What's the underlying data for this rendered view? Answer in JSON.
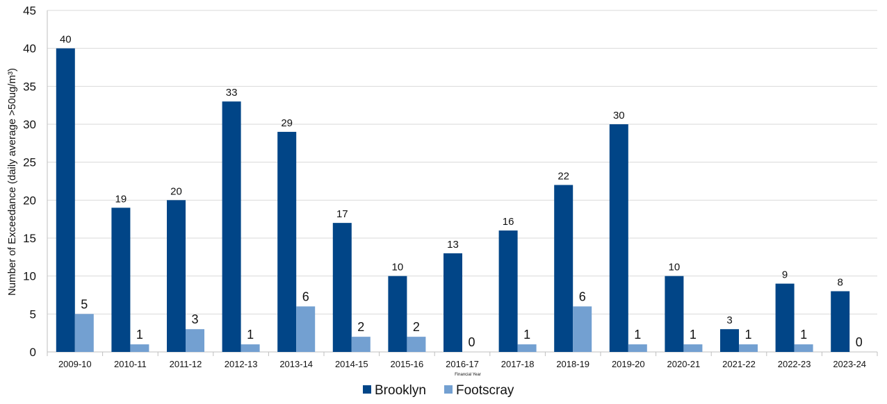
{
  "colors": {
    "brooklyn": "#014587",
    "footscray": "#73A0D1",
    "grid": "#d9d9d9",
    "axis": "#bfbfbf",
    "text": "#111111"
  },
  "chart_data": {
    "type": "bar",
    "title": "",
    "xlabel": "Financial Year",
    "ylabel": "Number of Exceedance (daily average >50ug/m³)",
    "ylim": [
      0,
      45
    ],
    "yticks": [
      0,
      5,
      10,
      15,
      20,
      25,
      30,
      35,
      40,
      45
    ],
    "grid": true,
    "legend_position": "bottom",
    "categories": [
      "2009-10",
      "2010-11",
      "2011-12",
      "2012-13",
      "2013-14",
      "2014-15",
      "2015-16",
      "2016-17",
      "2017-18",
      "2018-19",
      "2019-20",
      "2020-21",
      "2021-22",
      "2022-23",
      "2023-24"
    ],
    "series": [
      {
        "name": "Brooklyn",
        "color": "#014587",
        "values": [
          40,
          19,
          20,
          33,
          29,
          17,
          10,
          13,
          16,
          22,
          30,
          10,
          3,
          9,
          8
        ]
      },
      {
        "name": "Footscray",
        "color": "#73A0D1",
        "values": [
          5,
          1,
          3,
          1,
          6,
          2,
          2,
          0,
          1,
          6,
          1,
          1,
          1,
          1,
          0
        ]
      }
    ]
  }
}
